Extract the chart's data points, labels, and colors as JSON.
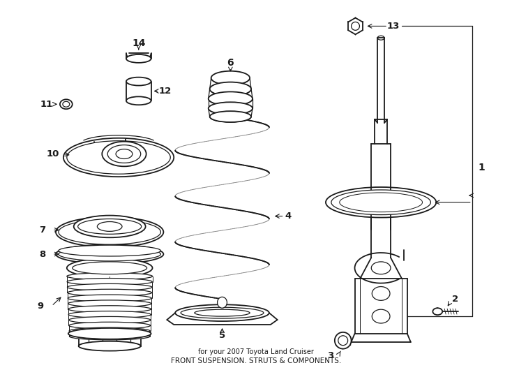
{
  "title": "FRONT SUSPENSION. STRUTS & COMPONENTS.",
  "subtitle": "for your 2007 Toyota Land Cruiser",
  "background_color": "#ffffff",
  "line_color": "#1a1a1a",
  "figsize": [
    7.34,
    5.4
  ],
  "dpi": 100
}
